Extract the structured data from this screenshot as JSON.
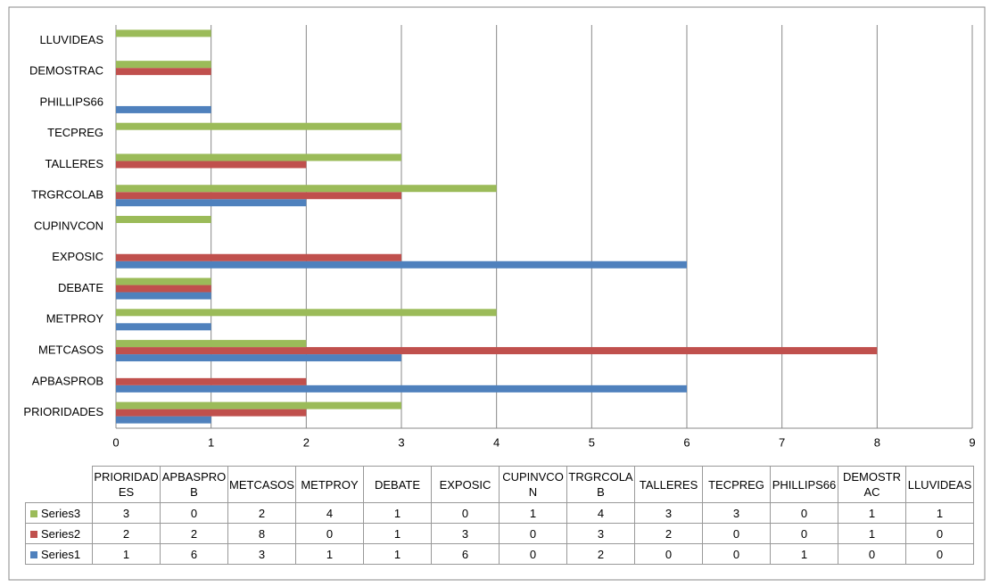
{
  "chart_data": {
    "type": "barh",
    "categories": [
      "PRIORIDADES",
      "APBASPROB",
      "METCASOS",
      "METPROY",
      "DEBATE",
      "EXPOSIC",
      "CUPINVCON",
      "TRGRCOLAB",
      "TALLERES",
      "TECPREG",
      "PHILLIPS66",
      "DEMOSTRAC",
      "LLUVIDEAS"
    ],
    "series": [
      {
        "name": "Series1",
        "color": "#4f81bd",
        "values": [
          1,
          6,
          3,
          1,
          1,
          6,
          0,
          2,
          0,
          0,
          1,
          0,
          0
        ]
      },
      {
        "name": "Series2",
        "color": "#c0504d",
        "values": [
          2,
          2,
          8,
          0,
          1,
          3,
          0,
          3,
          2,
          0,
          0,
          1,
          0
        ]
      },
      {
        "name": "Series3",
        "color": "#9bbb59",
        "values": [
          3,
          0,
          2,
          4,
          1,
          0,
          1,
          4,
          3,
          3,
          0,
          1,
          1
        ]
      }
    ],
    "xlim": [
      0,
      9
    ],
    "xticks": [
      0,
      1,
      2,
      3,
      4,
      5,
      6,
      7,
      8,
      9
    ],
    "grid": true
  }
}
